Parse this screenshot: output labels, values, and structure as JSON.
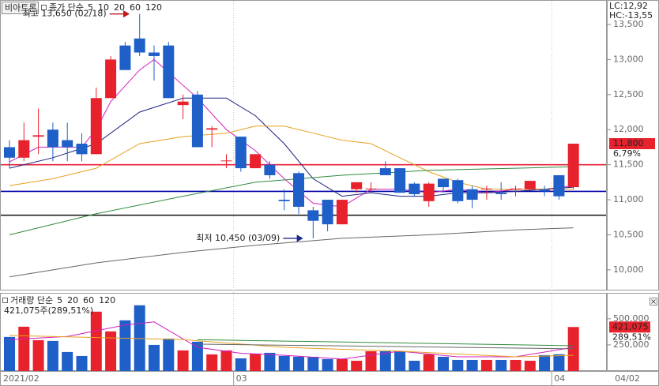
{
  "chart_data": [
    {
      "type": "candlestick",
      "title": "비아트론",
      "legend_label": "종가 단순",
      "corner_labels": [
        {
          "text": "LC:12,92",
          "color": "#d02020"
        },
        {
          "text": "HC:-13,55",
          "color": "#2040c0"
        }
      ],
      "categories": [
        "2021/02",
        null,
        null,
        null,
        null,
        null,
        null,
        null,
        null,
        null,
        null,
        null,
        null,
        null,
        null,
        null,
        "03",
        null,
        null,
        null,
        null,
        null,
        null,
        null,
        null,
        null,
        null,
        null,
        null,
        null,
        null,
        null,
        null,
        null,
        null,
        null,
        null,
        null,
        "04",
        null
      ],
      "date_label": "04/02",
      "up_color": "#e8222d",
      "down_color": "#1f5fc8",
      "open": [
        11750,
        11600,
        11900,
        12000,
        11850,
        11800,
        11650,
        12450,
        13200,
        13300,
        13100,
        13200,
        12350,
        12500,
        12000,
        11550,
        11900,
        11450,
        11500,
        11000,
        11380,
        10850,
        11000,
        10650,
        11150,
        11150,
        11450,
        11450,
        11230,
        10980,
        11300,
        11280,
        11150,
        11150,
        11100,
        11150,
        11150,
        11150,
        11350,
        11180
      ],
      "high": [
        11850,
        12100,
        12300,
        12100,
        12100,
        11950,
        12600,
        13050,
        13250,
        13650,
        13200,
        13250,
        12500,
        12550,
        12050,
        11650,
        11900,
        11650,
        11550,
        11150,
        11400,
        10900,
        11000,
        11000,
        11250,
        11250,
        11550,
        11450,
        11250,
        11250,
        11300,
        11300,
        11200,
        11200,
        11250,
        11200,
        11270,
        11200,
        11350,
        11800
      ],
      "low": [
        11450,
        11550,
        11650,
        11550,
        11550,
        11550,
        11650,
        12450,
        12850,
        13050,
        12700,
        12450,
        12150,
        11750,
        11750,
        11450,
        11400,
        11450,
        11300,
        10850,
        10800,
        10450,
        10550,
        10650,
        11100,
        11100,
        11350,
        11100,
        11050,
        10900,
        11100,
        10950,
        10880,
        11000,
        11000,
        11050,
        11150,
        11050,
        11000,
        11150
      ],
      "close": [
        11600,
        11850,
        11920,
        11750,
        11750,
        11650,
        12450,
        13000,
        12850,
        13100,
        13050,
        12450,
        12400,
        11750,
        12020,
        11560,
        11450,
        11650,
        11350,
        10980,
        10900,
        10700,
        10650,
        11000,
        11250,
        11160,
        11350,
        11100,
        11080,
        11230,
        11180,
        10980,
        11000,
        11160,
        11080,
        11160,
        11270,
        11120,
        11050,
        11800
      ],
      "ma": [
        {
          "name": "5",
          "color": "#d020c0",
          "x": [
            0,
            2,
            3,
            5,
            6,
            7,
            9,
            10,
            13,
            15,
            17,
            19,
            21,
            23,
            25,
            27,
            29,
            31,
            33,
            35,
            37,
            39
          ],
          "values": [
            11540,
            11750,
            11750,
            11750,
            12000,
            12400,
            12850,
            13000,
            12450,
            12000,
            11700,
            11300,
            10950,
            10900,
            11150,
            11150,
            11100,
            11150,
            11100,
            11150,
            11150,
            11200
          ]
        },
        {
          "name": "10",
          "color": "#1a237e",
          "x": [
            0,
            3,
            6,
            9,
            12,
            15,
            17,
            19,
            21,
            23,
            25,
            27,
            29,
            31,
            33,
            35,
            37,
            39
          ],
          "values": [
            11450,
            11600,
            11800,
            12250,
            12450,
            12450,
            12200,
            11800,
            11300,
            11050,
            11100,
            11050,
            11050,
            11100,
            11100,
            11120,
            11150,
            11180
          ]
        },
        {
          "name": "20",
          "color": "#e8a020",
          "x": [
            0,
            3,
            6,
            9,
            12,
            15,
            17,
            19,
            21,
            23,
            25,
            27,
            29,
            31,
            33,
            35,
            37,
            39
          ],
          "values": [
            11200,
            11300,
            11450,
            11800,
            11900,
            11950,
            12050,
            12050,
            11950,
            11850,
            11800,
            11600,
            11400,
            11250,
            11150,
            11150,
            11150,
            11150
          ]
        },
        {
          "name": "60",
          "color": "#2e8b3e",
          "x": [
            0,
            6,
            12,
            17,
            23,
            29,
            35,
            39
          ],
          "values": [
            10500,
            10800,
            11050,
            11250,
            11350,
            11420,
            11450,
            11470
          ]
        },
        {
          "name": "120",
          "color": "#666666",
          "x": [
            0,
            6,
            12,
            17,
            23,
            29,
            35,
            39
          ],
          "values": [
            9900,
            10100,
            10250,
            10350,
            10450,
            10500,
            10570,
            10600
          ]
        }
      ],
      "hlines": [
        {
          "value": 11500,
          "color": "#e8203a"
        },
        {
          "value": 11120,
          "color": "#0000aa"
        },
        {
          "value": 10780,
          "color": "#111111"
        }
      ],
      "annotations": [
        {
          "text": "최고 13,650 (02/18)",
          "index": 9,
          "value": 13650,
          "color": "#c01818"
        },
        {
          "text": "최저 10,450 (03/09)",
          "index": 21,
          "value": 10450,
          "color": "#1a2a8a"
        }
      ],
      "last_label": "11,800",
      "last_value": 11800,
      "change_label": "6,79%",
      "ylim": [
        9740,
        13680
      ],
      "yticks": [
        {
          "value": 10000,
          "label": "10,000"
        },
        {
          "value": 10500,
          "label": "10,500"
        },
        {
          "value": 11000,
          "label": "11,000"
        },
        {
          "value": 11500,
          "label": "11,500"
        },
        {
          "value": 12000,
          "label": "12,000"
        },
        {
          "value": 12500,
          "label": "12,500"
        },
        {
          "value": 13000,
          "label": "13,000"
        },
        {
          "value": 13500,
          "label": "13,500"
        }
      ]
    },
    {
      "type": "bar",
      "title": "거래량 단순",
      "values": [
        326000,
        424000,
        295000,
        288000,
        182000,
        144000,
        568000,
        379000,
        485000,
        629000,
        250000,
        310000,
        197000,
        280000,
        159000,
        197000,
        121000,
        167000,
        174000,
        144000,
        136000,
        136000,
        114000,
        114000,
        98000,
        189000,
        189000,
        189000,
        98000,
        159000,
        136000,
        106000,
        106000,
        106000,
        106000,
        106000,
        98000,
        152000,
        160000,
        421075
      ],
      "ma": [
        {
          "name": "5",
          "color": "#d020c0",
          "x": [
            0,
            4,
            8,
            10,
            13,
            16,
            19,
            23,
            27,
            31,
            35,
            39
          ],
          "values": [
            300000,
            330000,
            440000,
            470000,
            227000,
            170000,
            150000,
            114000,
            190000,
            136000,
            136000,
            227000
          ]
        },
        {
          "name": "20",
          "color": "#e8a020",
          "x": [
            0,
            12,
            19,
            27,
            35,
            39
          ],
          "values": [
            340000,
            300000,
            227000,
            190000,
            136000,
            150000
          ]
        },
        {
          "name": "60",
          "color": "#2e8b3e",
          "x": [
            13,
            39
          ],
          "values": [
            300000,
            242000
          ]
        },
        {
          "name": "120",
          "color": "#666666",
          "x": [
            13,
            39
          ],
          "values": [
            258000,
            212000
          ]
        }
      ],
      "info_label": "421,075주(289,51%)",
      "last_label": "421,075",
      "last_value": 421075,
      "change_label": "289,51%",
      "ylim": [
        0,
        680000
      ],
      "yticks": [
        {
          "value": 250000,
          "label": "250,000"
        },
        {
          "value": 500000,
          "label": "500,000"
        }
      ]
    }
  ]
}
